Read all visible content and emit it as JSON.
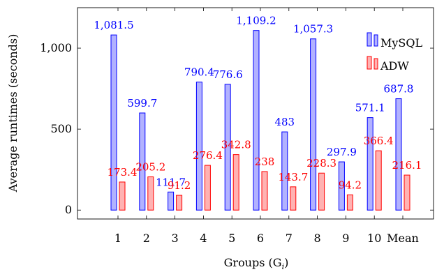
{
  "chart_data": {
    "type": "bar",
    "title": "",
    "xlabel": "Groups (G",
    "xlabel_sub": "i",
    "xlabel_close": ")",
    "ylabel": "Average runtimes (seconds)",
    "ylim": [
      -55,
      1250
    ],
    "yticks": [
      0,
      500,
      1000
    ],
    "ytick_labels": [
      "0",
      "500",
      "1,000"
    ],
    "categories": [
      "1",
      "2",
      "3",
      "4",
      "5",
      "6",
      "7",
      "8",
      "9",
      "10",
      "Mean"
    ],
    "series": [
      {
        "name": "MySQL",
        "values": [
          1081.5,
          599.7,
          111.7,
          790.4,
          776.6,
          1109.2,
          483,
          1057.3,
          297.9,
          571.1,
          687.8
        ],
        "labels": [
          "1,081.5",
          "599.7",
          "111.7",
          "790.4",
          "776.6",
          "1,109.2",
          "483",
          "1,057.3",
          "297.9",
          "571.1",
          "687.8"
        ],
        "fill": "#b2b2ff",
        "stroke": "#0000ff",
        "label_color": "#0000ff"
      },
      {
        "name": "ADW",
        "values": [
          173.4,
          205.2,
          91.2,
          276.4,
          342.8,
          238,
          143.7,
          228.3,
          94.2,
          366.4,
          216.1
        ],
        "labels": [
          "173.4",
          "205.2",
          "91.2",
          "276.4",
          "342.8",
          "238",
          "143.7",
          "228.3",
          "94.2",
          "366.4",
          "216.1"
        ],
        "fill": "#ffb2b2",
        "stroke": "#ff0000",
        "label_color": "#ff0000"
      }
    ],
    "legend": {
      "placement": "top-right",
      "entries": [
        "MySQL",
        "ADW"
      ]
    },
    "grid": false
  }
}
